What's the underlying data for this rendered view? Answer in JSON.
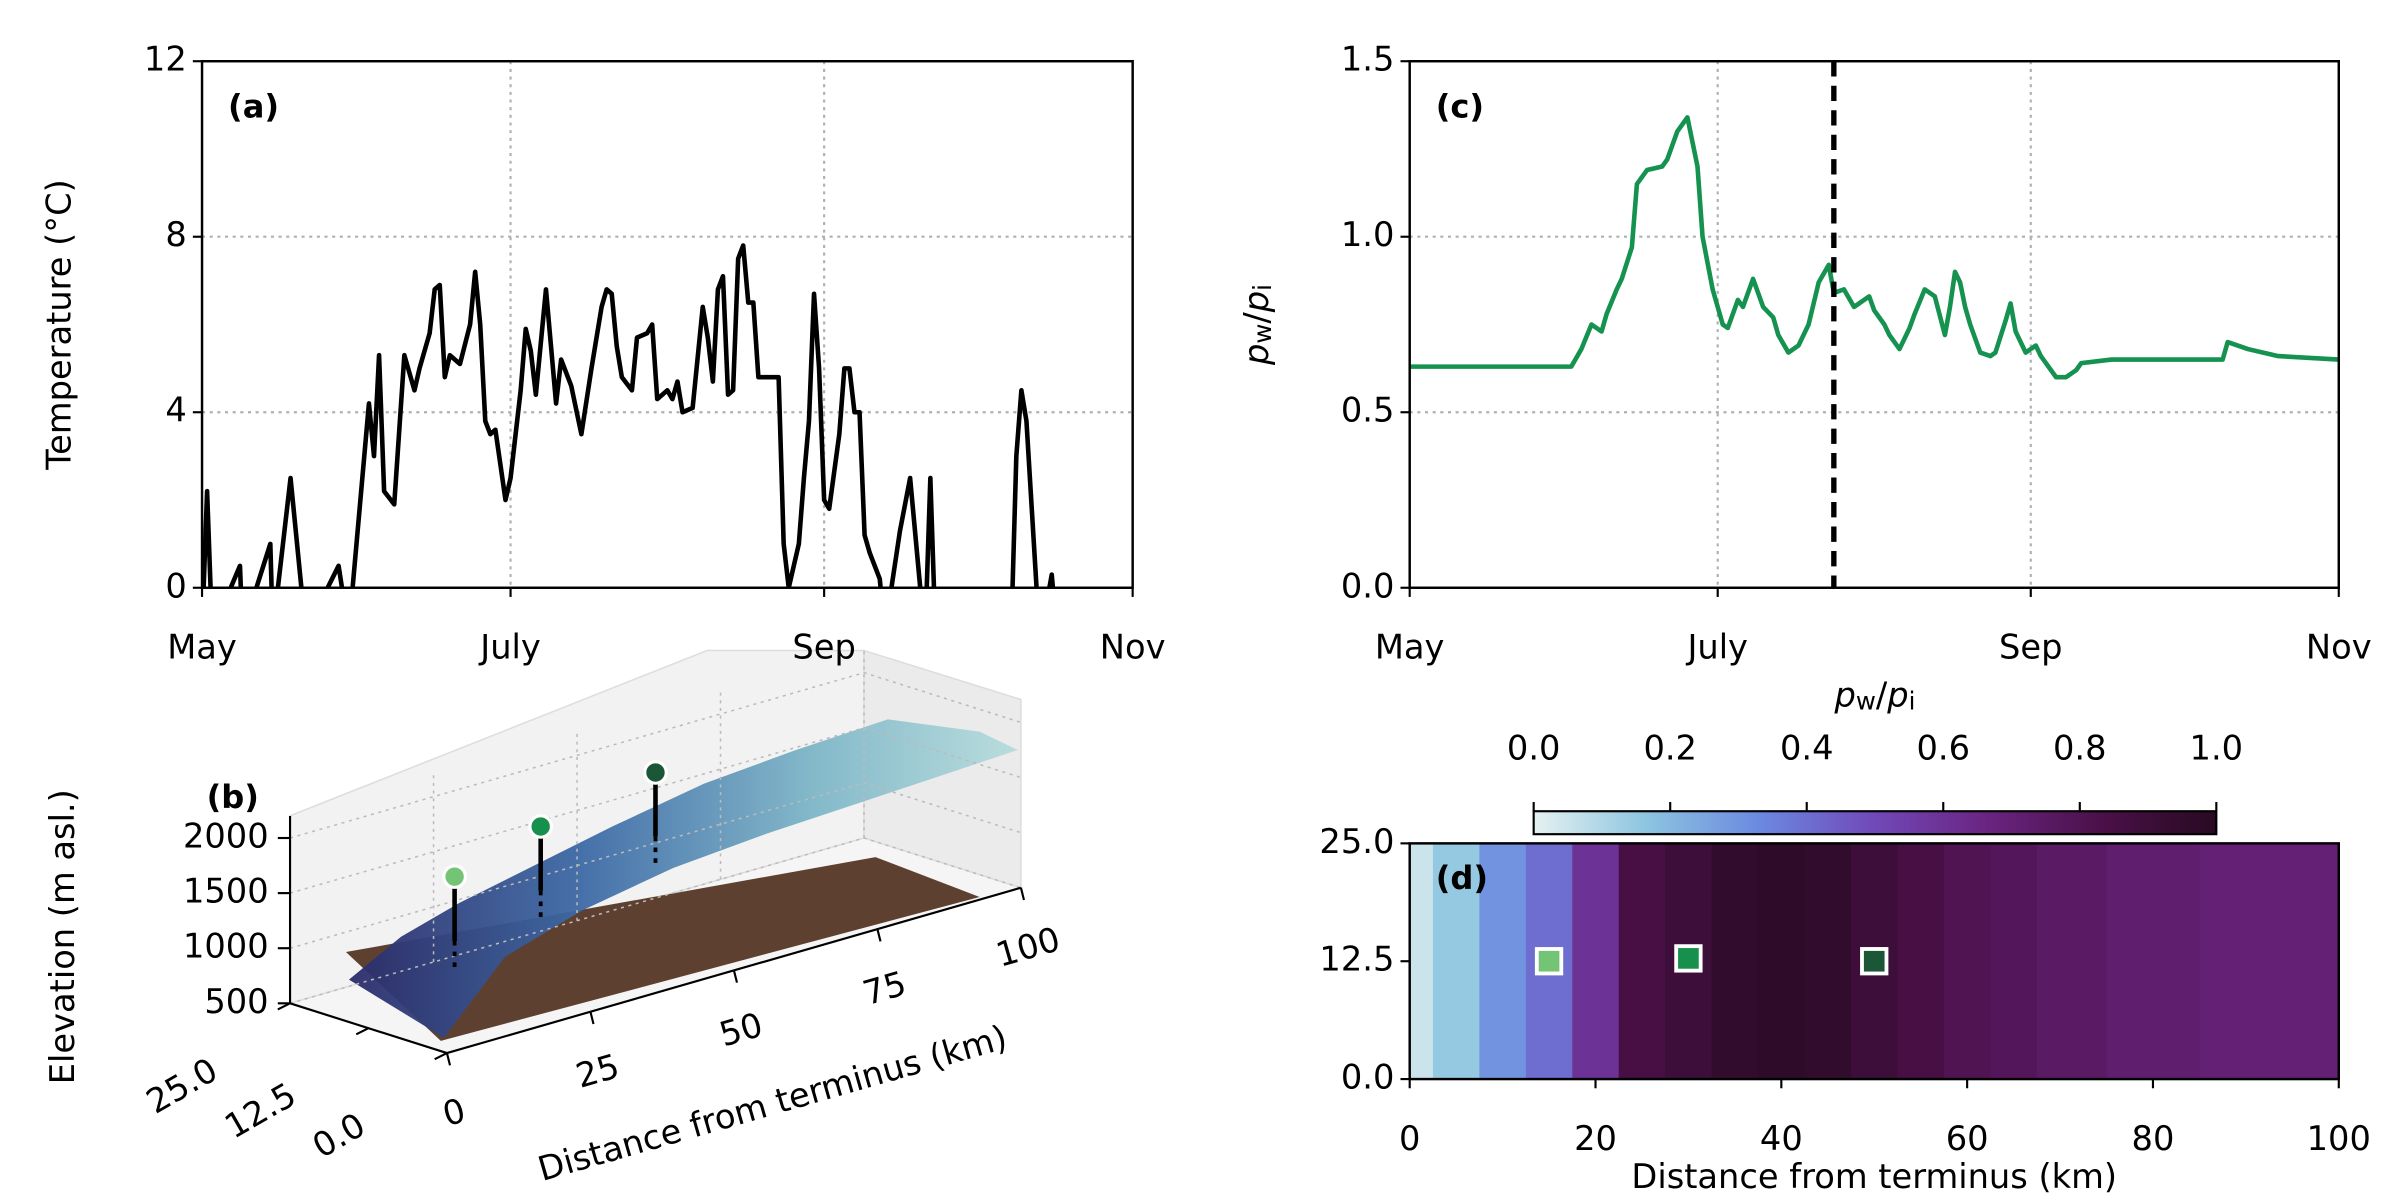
{
  "chart_data": [
    {
      "type": "line",
      "label": "(a)",
      "ylabel": "Temperature (°C)",
      "color": "#000000",
      "grid": true,
      "xlim": [
        0,
        184
      ],
      "xticks": [
        {
          "value": 0,
          "label": "May"
        },
        {
          "value": 61,
          "label": "July"
        },
        {
          "value": 123,
          "label": "Sep"
        },
        {
          "value": 184,
          "label": "Nov"
        }
      ],
      "ylim": [
        0,
        12
      ],
      "yticks": [
        0,
        4,
        8,
        12
      ],
      "x": [
        0,
        1,
        2,
        7.5,
        8,
        13.5,
        14,
        17.5,
        20.5,
        27,
        29,
        33,
        34,
        35,
        36,
        38,
        40,
        42,
        43,
        45,
        46,
        47,
        48,
        49,
        51,
        53,
        54,
        55,
        56,
        57,
        58,
        60,
        61,
        63,
        64,
        65,
        66,
        68,
        69,
        70,
        71,
        73,
        75,
        77,
        79,
        80,
        81,
        82,
        83,
        85,
        86,
        88,
        89,
        90,
        92,
        93,
        94,
        95,
        97,
        99,
        100,
        101,
        102,
        103,
        104,
        105,
        106,
        107,
        108,
        109,
        110,
        114,
        115,
        116,
        118,
        119,
        120,
        121,
        122,
        123,
        124,
        126,
        127,
        128,
        129,
        130,
        131,
        132,
        134,
        135,
        138,
        140,
        142,
        143,
        144,
        145,
        160,
        161,
        162,
        163,
        165,
        166,
        168,
        169
      ],
      "values": [
        -1,
        2.2,
        -1,
        0.5,
        -1,
        1,
        -1,
        2.5,
        -1,
        0.5,
        -1,
        4.2,
        3,
        5.3,
        2.2,
        1.9,
        5.3,
        4.5,
        5,
        5.8,
        6.8,
        6.9,
        4.8,
        5.3,
        5.1,
        6,
        7.2,
        6,
        3.8,
        3.5,
        3.6,
        2,
        2.5,
        4.5,
        5.9,
        5.4,
        4.4,
        6.8,
        5.5,
        4.2,
        5.2,
        4.6,
        3.5,
        5,
        6.4,
        6.8,
        6.7,
        5.5,
        4.8,
        4.5,
        5.7,
        5.8,
        6,
        4.3,
        4.5,
        4.3,
        4.7,
        4,
        4.1,
        6.4,
        5.7,
        4.7,
        6.8,
        7.1,
        4.4,
        4.5,
        7.5,
        7.8,
        6.5,
        6.5,
        4.8,
        4.8,
        1,
        0,
        1,
        2.5,
        3.8,
        6.7,
        5,
        2,
        1.8,
        3.5,
        5,
        5,
        4,
        4,
        1.2,
        0.8,
        0.2,
        -1,
        1.3,
        2.5,
        0,
        -1,
        2.5,
        -1,
        -1,
        3,
        4.5,
        3.8,
        0,
        -1,
        0.3,
        -1
      ]
    },
    {
      "type": "surface3d",
      "label": "(b)",
      "zlabel": "Elevation (m asl.)",
      "xlabel": "Distance from terminus (km)",
      "xlim": [
        0,
        100
      ],
      "ylim": [
        0,
        25
      ],
      "zlim": [
        500,
        2200
      ],
      "xticks": [
        0,
        25,
        50,
        75,
        100
      ],
      "yticks": [
        {
          "value": 0,
          "label": "0.0"
        },
        {
          "value": 12.5,
          "label": "12.5"
        },
        {
          "value": 25,
          "label": "25.0"
        }
      ],
      "zticks": [
        500,
        1000,
        1500,
        2000
      ],
      "markers": {
        "x": [
          15,
          30,
          50
        ],
        "y": [
          12.5,
          12.5,
          12.5
        ],
        "z": [
          1650,
          1880,
          2070
        ],
        "colors": [
          "#74c476",
          "#16904c",
          "#1b5636"
        ]
      }
    },
    {
      "type": "line",
      "label": "(c)",
      "ylabel": [
        {
          "text": "p",
          "style": "italic"
        },
        {
          "text": "w",
          "style": "sub"
        },
        {
          "text": "/",
          "style": "normal"
        },
        {
          "text": "p",
          "style": "italic"
        },
        {
          "text": "i",
          "style": "sub"
        }
      ],
      "color": "#15924f",
      "grid": true,
      "vline": 84,
      "xlim": [
        0,
        184
      ],
      "xticks": [
        {
          "value": 0,
          "label": "May"
        },
        {
          "value": 61,
          "label": "July"
        },
        {
          "value": 123,
          "label": "Sep"
        },
        {
          "value": 184,
          "label": "Nov"
        }
      ],
      "ylim": [
        0,
        1.5
      ],
      "yticks": [
        {
          "value": 0,
          "label": "0.0"
        },
        {
          "value": 0.5,
          "label": "0.5"
        },
        {
          "value": 1,
          "label": "1.0"
        },
        {
          "value": 1.5,
          "label": "1.5"
        }
      ],
      "x": [
        0,
        32,
        34,
        36,
        38,
        39,
        41,
        42,
        44,
        45,
        47,
        50,
        51,
        53,
        55,
        57,
        58,
        60,
        62,
        63,
        65,
        66,
        68,
        70,
        72,
        73,
        75,
        77,
        79,
        81,
        83,
        84,
        86,
        88,
        89,
        91,
        92,
        94,
        95,
        97,
        99,
        100,
        102,
        104,
        106,
        107,
        108,
        109,
        110,
        111,
        113,
        115,
        116,
        118,
        119,
        120,
        122,
        124,
        125,
        127,
        128,
        130,
        132,
        133,
        139,
        145,
        152,
        161,
        162,
        166,
        172,
        184
      ],
      "values": [
        0.63,
        0.63,
        0.68,
        0.75,
        0.73,
        0.78,
        0.85,
        0.88,
        0.97,
        1.15,
        1.19,
        1.2,
        1.22,
        1.3,
        1.34,
        1.2,
        1.0,
        0.85,
        0.75,
        0.74,
        0.82,
        0.8,
        0.88,
        0.8,
        0.77,
        0.72,
        0.67,
        0.69,
        0.75,
        0.87,
        0.92,
        0.84,
        0.85,
        0.8,
        0.81,
        0.83,
        0.79,
        0.75,
        0.72,
        0.68,
        0.74,
        0.78,
        0.85,
        0.83,
        0.72,
        0.8,
        0.9,
        0.87,
        0.8,
        0.75,
        0.67,
        0.66,
        0.67,
        0.76,
        0.81,
        0.73,
        0.67,
        0.69,
        0.66,
        0.62,
        0.6,
        0.6,
        0.62,
        0.64,
        0.65,
        0.65,
        0.65,
        0.65,
        0.7,
        0.68,
        0.66,
        0.65
      ]
    },
    {
      "type": "heatmap",
      "label": "(d)",
      "xlabel": "Distance from terminus (km)",
      "xlim": [
        0,
        100
      ],
      "ylim": [
        0,
        25
      ],
      "xticks": [
        0,
        20,
        40,
        60,
        80,
        100
      ],
      "yticks": [
        {
          "value": 0,
          "label": "0.0"
        },
        {
          "value": 12.5,
          "label": "12.5"
        },
        {
          "value": 25,
          "label": "25.0"
        }
      ],
      "x": [
        0,
        5,
        10,
        15,
        20,
        25,
        30,
        35,
        40,
        45,
        50,
        55,
        60,
        65,
        70,
        80,
        90,
        100
      ],
      "values": [
        0.05,
        0.15,
        0.3,
        0.4,
        0.6,
        0.85,
        0.9,
        0.95,
        0.97,
        0.95,
        0.9,
        0.85,
        0.8,
        0.78,
        0.75,
        0.72,
        0.7,
        0.7
      ],
      "colormap": [
        "#e6f1f1",
        "#8cc4e0",
        "#6b88e0",
        "#7148b8",
        "#6a2480",
        "#4a1048",
        "#280a22"
      ],
      "clim": [
        0,
        1
      ],
      "cticks": [
        {
          "value": 0,
          "label": "0.0"
        },
        {
          "value": 0.2,
          "label": "0.2"
        },
        {
          "value": 0.4,
          "label": "0.4"
        },
        {
          "value": 0.6,
          "label": "0.6"
        },
        {
          "value": 0.8,
          "label": "0.8"
        },
        {
          "value": 1,
          "label": "1.0"
        }
      ],
      "colorbar_label": [
        {
          "text": "p",
          "style": "italic"
        },
        {
          "text": "w",
          "style": "sub"
        },
        {
          "text": "/",
          "style": "normal"
        },
        {
          "text": "p",
          "style": "italic"
        },
        {
          "text": "i",
          "style": "sub"
        }
      ],
      "markers": {
        "x": [
          15,
          30,
          50
        ],
        "y": [
          12.5,
          12.8,
          12.5
        ],
        "colors": [
          "#74c476",
          "#16904c",
          "#1b5636"
        ]
      }
    }
  ]
}
